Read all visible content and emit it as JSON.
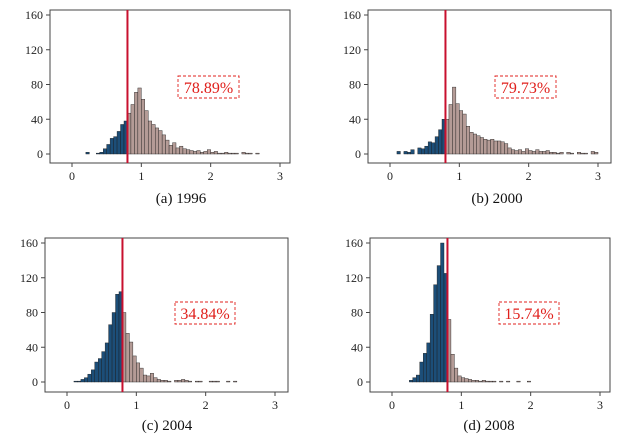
{
  "colors": {
    "below_threshold": "#1c4e78",
    "above_threshold": "#b49b96",
    "threshold_line": "#c8102e",
    "percent_text": "#e0201c"
  },
  "chart_data": [
    {
      "type": "bar",
      "caption": "(a) 1996",
      "percent_label": "78.89%",
      "threshold_x": 0.8,
      "bin_width": 0.05,
      "xlim": [
        0,
        3
      ],
      "ylim": [
        0,
        160
      ],
      "xticks": [
        "0",
        "1",
        "2",
        "3"
      ],
      "yticks": [
        "0",
        "40",
        "80",
        "120",
        "160"
      ],
      "grid": false,
      "bins": [
        {
          "x": 0.2,
          "y": 2
        },
        {
          "x": 0.35,
          "y": 1
        },
        {
          "x": 0.4,
          "y": 2
        },
        {
          "x": 0.45,
          "y": 6
        },
        {
          "x": 0.5,
          "y": 11
        },
        {
          "x": 0.55,
          "y": 18
        },
        {
          "x": 0.6,
          "y": 20
        },
        {
          "x": 0.65,
          "y": 26
        },
        {
          "x": 0.7,
          "y": 34
        },
        {
          "x": 0.75,
          "y": 38
        },
        {
          "x": 0.8,
          "y": 47
        },
        {
          "x": 0.85,
          "y": 57
        },
        {
          "x": 0.9,
          "y": 71
        },
        {
          "x": 0.95,
          "y": 76
        },
        {
          "x": 1.0,
          "y": 63
        },
        {
          "x": 1.05,
          "y": 50
        },
        {
          "x": 1.1,
          "y": 38
        },
        {
          "x": 1.15,
          "y": 34
        },
        {
          "x": 1.2,
          "y": 30
        },
        {
          "x": 1.25,
          "y": 27
        },
        {
          "x": 1.3,
          "y": 22
        },
        {
          "x": 1.35,
          "y": 16
        },
        {
          "x": 1.4,
          "y": 10
        },
        {
          "x": 1.45,
          "y": 13
        },
        {
          "x": 1.5,
          "y": 7
        },
        {
          "x": 1.55,
          "y": 9
        },
        {
          "x": 1.6,
          "y": 6
        },
        {
          "x": 1.65,
          "y": 5
        },
        {
          "x": 1.7,
          "y": 4
        },
        {
          "x": 1.75,
          "y": 3
        },
        {
          "x": 1.8,
          "y": 4
        },
        {
          "x": 1.85,
          "y": 2
        },
        {
          "x": 1.9,
          "y": 3
        },
        {
          "x": 1.95,
          "y": 5
        },
        {
          "x": 2.0,
          "y": 2
        },
        {
          "x": 2.05,
          "y": 3
        },
        {
          "x": 2.1,
          "y": 1
        },
        {
          "x": 2.15,
          "y": 1
        },
        {
          "x": 2.2,
          "y": 2
        },
        {
          "x": 2.25,
          "y": 1
        },
        {
          "x": 2.3,
          "y": 1
        },
        {
          "x": 2.35,
          "y": 1
        },
        {
          "x": 2.45,
          "y": 2
        },
        {
          "x": 2.5,
          "y": 1
        },
        {
          "x": 2.55,
          "y": 1
        },
        {
          "x": 2.65,
          "y": 1
        }
      ]
    },
    {
      "type": "bar",
      "caption": "(b) 2000",
      "percent_label": "79.73%",
      "threshold_x": 0.8,
      "bin_width": 0.05,
      "xlim": [
        0,
        3
      ],
      "ylim": [
        0,
        160
      ],
      "xticks": [
        "0",
        "1",
        "2",
        "3"
      ],
      "yticks": [
        "0",
        "40",
        "80",
        "120",
        "160"
      ],
      "grid": false,
      "bins": [
        {
          "x": 0.1,
          "y": 3
        },
        {
          "x": 0.2,
          "y": 3
        },
        {
          "x": 0.25,
          "y": 2
        },
        {
          "x": 0.3,
          "y": 5
        },
        {
          "x": 0.4,
          "y": 7
        },
        {
          "x": 0.45,
          "y": 6
        },
        {
          "x": 0.5,
          "y": 9
        },
        {
          "x": 0.55,
          "y": 14
        },
        {
          "x": 0.6,
          "y": 13
        },
        {
          "x": 0.65,
          "y": 20
        },
        {
          "x": 0.7,
          "y": 28
        },
        {
          "x": 0.75,
          "y": 40
        },
        {
          "x": 0.8,
          "y": 40
        },
        {
          "x": 0.85,
          "y": 57
        },
        {
          "x": 0.9,
          "y": 77
        },
        {
          "x": 0.95,
          "y": 58
        },
        {
          "x": 1.0,
          "y": 50
        },
        {
          "x": 1.05,
          "y": 46
        },
        {
          "x": 1.1,
          "y": 32
        },
        {
          "x": 1.15,
          "y": 25
        },
        {
          "x": 1.2,
          "y": 23
        },
        {
          "x": 1.25,
          "y": 21
        },
        {
          "x": 1.3,
          "y": 19
        },
        {
          "x": 1.35,
          "y": 17
        },
        {
          "x": 1.4,
          "y": 16
        },
        {
          "x": 1.45,
          "y": 17
        },
        {
          "x": 1.5,
          "y": 15
        },
        {
          "x": 1.55,
          "y": 15
        },
        {
          "x": 1.6,
          "y": 14
        },
        {
          "x": 1.65,
          "y": 12
        },
        {
          "x": 1.7,
          "y": 7
        },
        {
          "x": 1.75,
          "y": 5
        },
        {
          "x": 1.8,
          "y": 4
        },
        {
          "x": 1.85,
          "y": 5
        },
        {
          "x": 1.9,
          "y": 3
        },
        {
          "x": 1.95,
          "y": 6
        },
        {
          "x": 2.0,
          "y": 4
        },
        {
          "x": 2.05,
          "y": 3
        },
        {
          "x": 2.1,
          "y": 5
        },
        {
          "x": 2.15,
          "y": 3
        },
        {
          "x": 2.2,
          "y": 3
        },
        {
          "x": 2.25,
          "y": 4
        },
        {
          "x": 2.3,
          "y": 2
        },
        {
          "x": 2.35,
          "y": 2
        },
        {
          "x": 2.4,
          "y": 1
        },
        {
          "x": 2.45,
          "y": 2
        },
        {
          "x": 2.55,
          "y": 2
        },
        {
          "x": 2.6,
          "y": 1
        },
        {
          "x": 2.7,
          "y": 2
        },
        {
          "x": 2.75,
          "y": 1
        },
        {
          "x": 2.8,
          "y": 1
        },
        {
          "x": 2.9,
          "y": 3
        },
        {
          "x": 2.95,
          "y": 2
        }
      ]
    },
    {
      "type": "bar",
      "caption": "(c) 2004",
      "percent_label": "34.84%",
      "threshold_x": 0.8,
      "bin_width": 0.05,
      "xlim": [
        0,
        3
      ],
      "ylim": [
        0,
        160
      ],
      "xticks": [
        "0",
        "1",
        "2",
        "3"
      ],
      "yticks": [
        "0",
        "40",
        "80",
        "120",
        "160"
      ],
      "grid": false,
      "bins": [
        {
          "x": 0.1,
          "y": 1
        },
        {
          "x": 0.15,
          "y": 1
        },
        {
          "x": 0.2,
          "y": 3
        },
        {
          "x": 0.25,
          "y": 5
        },
        {
          "x": 0.3,
          "y": 9
        },
        {
          "x": 0.35,
          "y": 14
        },
        {
          "x": 0.4,
          "y": 23
        },
        {
          "x": 0.45,
          "y": 27
        },
        {
          "x": 0.5,
          "y": 35
        },
        {
          "x": 0.55,
          "y": 45
        },
        {
          "x": 0.6,
          "y": 66
        },
        {
          "x": 0.65,
          "y": 80
        },
        {
          "x": 0.7,
          "y": 101
        },
        {
          "x": 0.75,
          "y": 104
        },
        {
          "x": 0.8,
          "y": 80
        },
        {
          "x": 0.85,
          "y": 56
        },
        {
          "x": 0.9,
          "y": 46
        },
        {
          "x": 0.95,
          "y": 30
        },
        {
          "x": 1.0,
          "y": 22
        },
        {
          "x": 1.05,
          "y": 16
        },
        {
          "x": 1.1,
          "y": 8
        },
        {
          "x": 1.15,
          "y": 7
        },
        {
          "x": 1.2,
          "y": 10
        },
        {
          "x": 1.25,
          "y": 5
        },
        {
          "x": 1.3,
          "y": 3
        },
        {
          "x": 1.35,
          "y": 2
        },
        {
          "x": 1.4,
          "y": 2
        },
        {
          "x": 1.45,
          "y": 1
        },
        {
          "x": 1.55,
          "y": 2
        },
        {
          "x": 1.6,
          "y": 2
        },
        {
          "x": 1.65,
          "y": 3
        },
        {
          "x": 1.7,
          "y": 2
        },
        {
          "x": 1.75,
          "y": 1
        },
        {
          "x": 1.85,
          "y": 1
        },
        {
          "x": 1.9,
          "y": 1
        },
        {
          "x": 2.05,
          "y": 1
        },
        {
          "x": 2.1,
          "y": 1
        },
        {
          "x": 2.15,
          "y": 1
        },
        {
          "x": 2.3,
          "y": 1
        },
        {
          "x": 2.4,
          "y": 1
        }
      ]
    },
    {
      "type": "bar",
      "caption": "(d) 2008",
      "percent_label": "15.74%",
      "threshold_x": 0.8,
      "bin_width": 0.05,
      "xlim": [
        0,
        3
      ],
      "ylim": [
        0,
        160
      ],
      "xticks": [
        "0",
        "1",
        "2",
        "3"
      ],
      "yticks": [
        "0",
        "40",
        "80",
        "120",
        "160"
      ],
      "grid": false,
      "bins": [
        {
          "x": 0.25,
          "y": 2
        },
        {
          "x": 0.3,
          "y": 5
        },
        {
          "x": 0.35,
          "y": 8
        },
        {
          "x": 0.4,
          "y": 23
        },
        {
          "x": 0.45,
          "y": 33
        },
        {
          "x": 0.5,
          "y": 45
        },
        {
          "x": 0.55,
          "y": 78
        },
        {
          "x": 0.6,
          "y": 112
        },
        {
          "x": 0.65,
          "y": 134
        },
        {
          "x": 0.7,
          "y": 160
        },
        {
          "x": 0.75,
          "y": 125
        },
        {
          "x": 0.8,
          "y": 72
        },
        {
          "x": 0.85,
          "y": 32
        },
        {
          "x": 0.9,
          "y": 16
        },
        {
          "x": 0.95,
          "y": 7
        },
        {
          "x": 1.0,
          "y": 5
        },
        {
          "x": 1.05,
          "y": 4
        },
        {
          "x": 1.1,
          "y": 3
        },
        {
          "x": 1.15,
          "y": 2
        },
        {
          "x": 1.2,
          "y": 2
        },
        {
          "x": 1.25,
          "y": 1
        },
        {
          "x": 1.3,
          "y": 2
        },
        {
          "x": 1.35,
          "y": 1
        },
        {
          "x": 1.4,
          "y": 1
        },
        {
          "x": 1.45,
          "y": 1
        },
        {
          "x": 1.55,
          "y": 1
        },
        {
          "x": 1.65,
          "y": 1
        },
        {
          "x": 1.8,
          "y": 1
        },
        {
          "x": 1.95,
          "y": 1
        }
      ]
    }
  ]
}
